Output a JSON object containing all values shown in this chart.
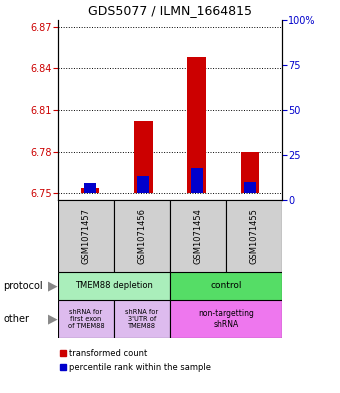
{
  "title": "GDS5077 / ILMN_1664815",
  "samples": [
    "GSM1071457",
    "GSM1071456",
    "GSM1071454",
    "GSM1071455"
  ],
  "red_values": [
    6.754,
    6.802,
    6.848,
    6.78
  ],
  "blue_values": [
    6.757,
    6.762,
    6.768,
    6.758
  ],
  "ylim_left": [
    6.745,
    6.875
  ],
  "yticks_left": [
    6.75,
    6.78,
    6.81,
    6.84,
    6.87
  ],
  "yticks_right": [
    0,
    25,
    50,
    75,
    100
  ],
  "bar_base": 6.75,
  "bar_width": 0.35,
  "blue_bar_width": 0.22,
  "protocol_colors": [
    "#aaeebb",
    "#55dd66"
  ],
  "other_colors_left": "#ddbbee",
  "other_color_right": "#ee77ee",
  "legend_red": "transformed count",
  "legend_blue": "percentile rank within the sample",
  "red_color": "#cc0000",
  "blue_color": "#0000cc",
  "left_axis_color": "#cc0000",
  "right_axis_color": "#0000cc",
  "sample_bg": "#d0d0d0",
  "fig_bg": "#ffffff"
}
